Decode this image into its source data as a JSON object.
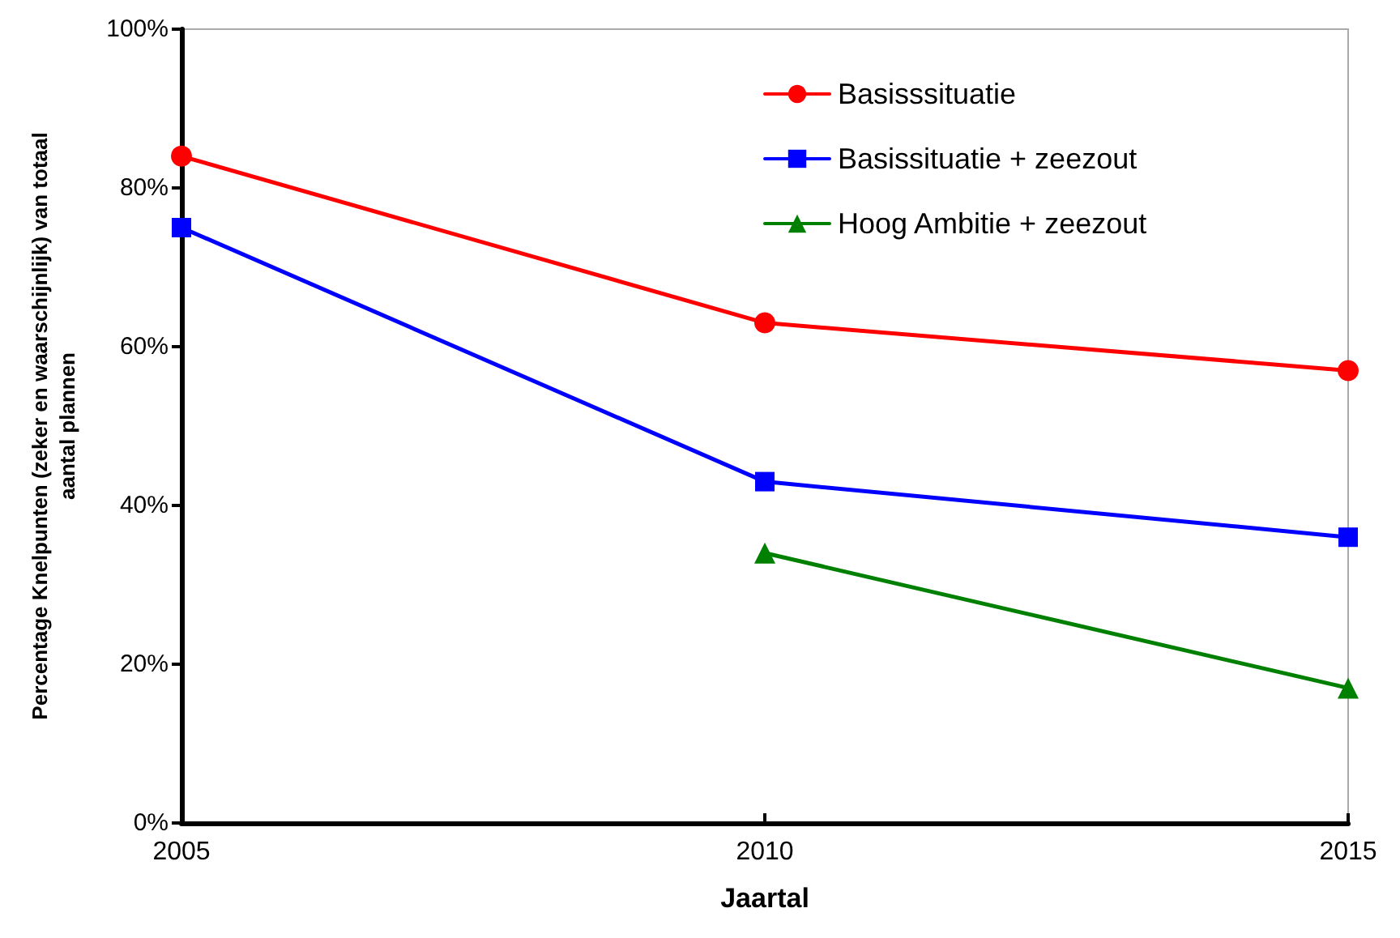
{
  "chart_data": {
    "type": "line",
    "xlabel": "Jaartal",
    "ylabel": "Percentage Knelpunten (zeker en waarschijnlijk) van totaal\naantal plannen",
    "x": [
      2005,
      2010,
      2015
    ],
    "series": [
      {
        "name": "Basisssituatie",
        "color": "#ff0000",
        "marker": "circle",
        "values": [
          84,
          63,
          57
        ]
      },
      {
        "name": "Basissituatie + zeezout",
        "color": "#0000ff",
        "marker": "square",
        "values": [
          75,
          43,
          36
        ]
      },
      {
        "name": "Hoog Ambitie + zeezout",
        "color": "#008000",
        "marker": "triangle",
        "values": [
          null,
          34,
          17
        ]
      }
    ],
    "xlim": [
      2005,
      2015
    ],
    "xticks": [
      2005,
      2010,
      2015
    ],
    "ylim": [
      0,
      100
    ],
    "yticks": [
      {
        "value": 0,
        "label": "0%"
      },
      {
        "value": 20,
        "label": "20%"
      },
      {
        "value": 40,
        "label": "40%"
      },
      {
        "value": 60,
        "label": "60%"
      },
      {
        "value": 80,
        "label": "80%"
      },
      {
        "value": 100,
        "label": "100%"
      }
    ],
    "grid": false,
    "legend": "top right",
    "line_style": "solid"
  }
}
